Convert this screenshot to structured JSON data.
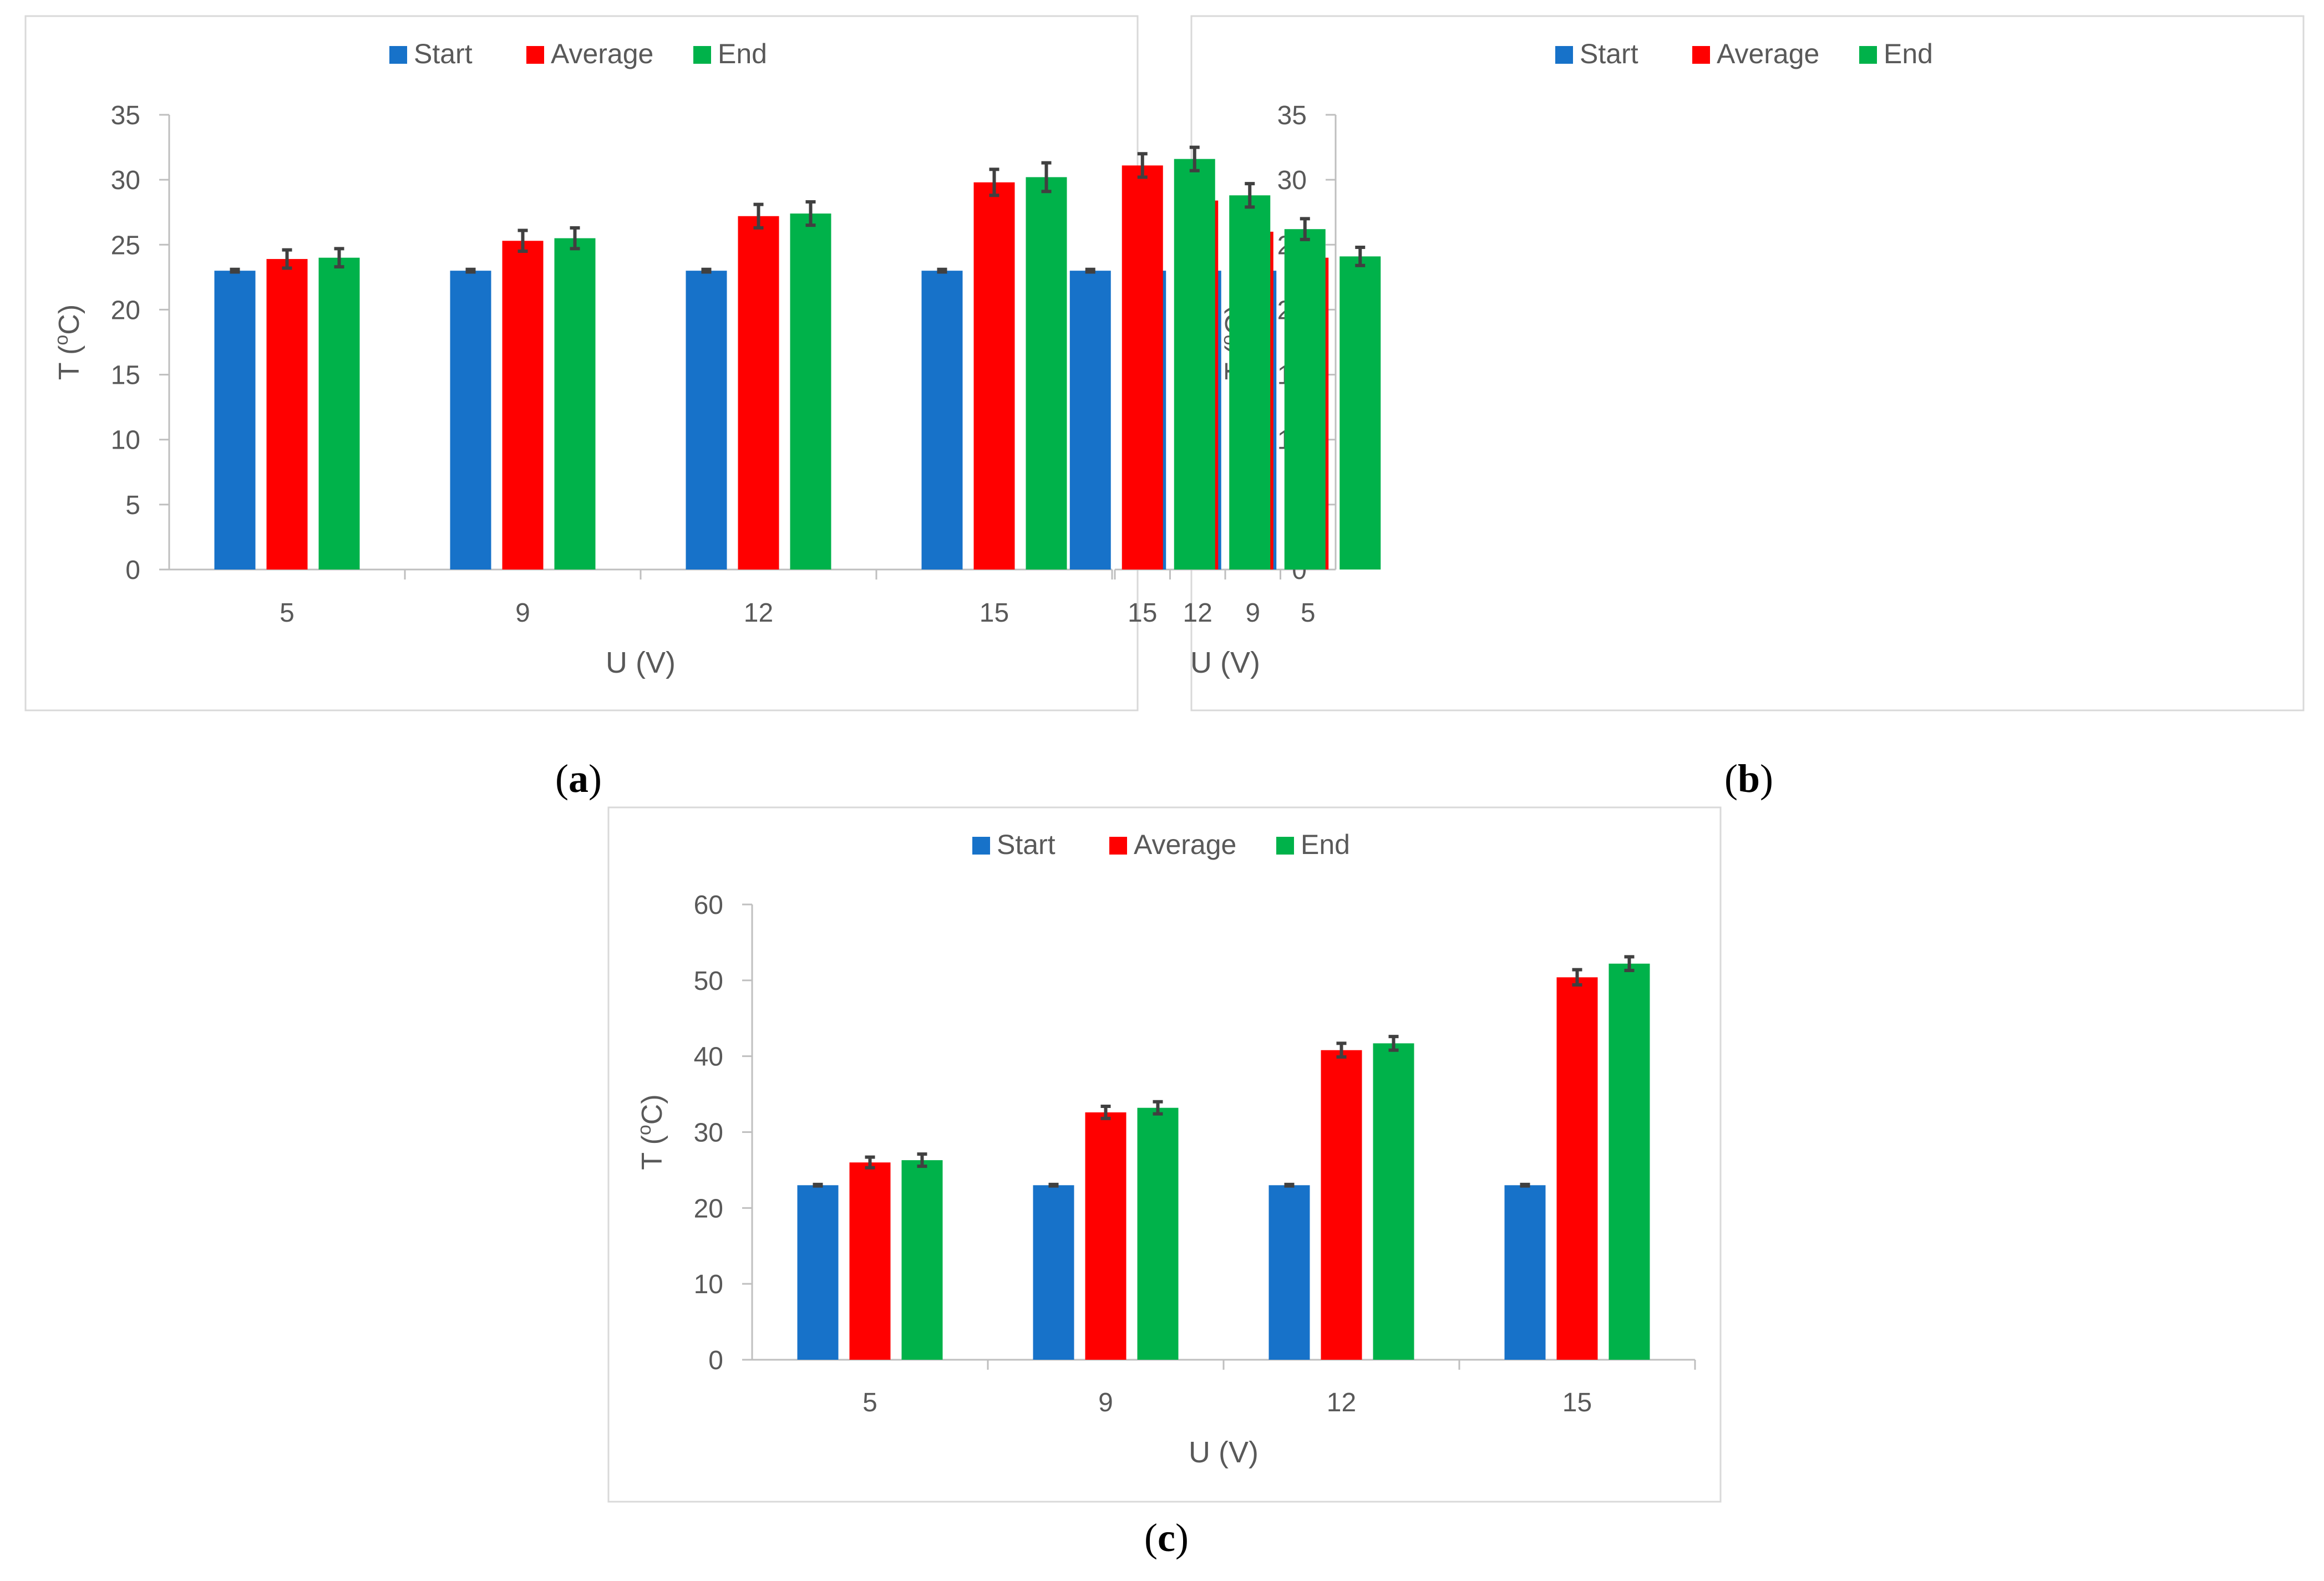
{
  "legend": [
    {
      "name": "Start",
      "color": "#1772C9"
    },
    {
      "name": "Average",
      "color": "#FF0000"
    },
    {
      "name": "End",
      "color": "#00B24A"
    }
  ],
  "error_bar_color": "#404040",
  "panel_labels": [
    "a",
    "b",
    "c"
  ],
  "chart_data": [
    {
      "type": "bar",
      "title": "",
      "xlabel": "U (V)",
      "ylabel_main": "T (",
      "ylabel_sup": "o",
      "ylabel_end": "C)",
      "categories": [
        "5",
        "9",
        "12",
        "15"
      ],
      "ylim": [
        0,
        35
      ],
      "ystep": 5,
      "legend_position": "top-center",
      "grid": false,
      "series": [
        {
          "name": "Start",
          "values": [
            23.0,
            23.0,
            23.0,
            23.0
          ],
          "errors": [
            0.1,
            0.1,
            0.1,
            0.1
          ]
        },
        {
          "name": "Average",
          "values": [
            23.9,
            25.3,
            27.2,
            29.8
          ],
          "errors": [
            0.7,
            0.8,
            0.9,
            1.0
          ]
        },
        {
          "name": "End",
          "values": [
            24.0,
            25.5,
            27.4,
            30.2
          ],
          "errors": [
            0.7,
            0.8,
            0.9,
            1.1
          ]
        }
      ]
    },
    {
      "type": "bar",
      "title": "",
      "xlabel": "U (V)",
      "ylabel_main": "T (",
      "ylabel_sup": "o",
      "ylabel_end": "C)",
      "categories": [
        "5",
        "9",
        "12",
        "15"
      ],
      "ylim": [
        0,
        35
      ],
      "ystep": 5,
      "legend_position": "top-center",
      "grid": false,
      "series": [
        {
          "name": "Start",
          "values": [
            23.0,
            23.0,
            23.0,
            23.0
          ],
          "errors": [
            0.1,
            0.1,
            0.1,
            0.1
          ]
        },
        {
          "name": "Average",
          "values": [
            24.0,
            26.0,
            28.4,
            31.1
          ],
          "errors": [
            0.6,
            0.7,
            0.8,
            0.9
          ]
        },
        {
          "name": "End",
          "values": [
            24.1,
            26.2,
            28.8,
            31.6
          ],
          "errors": [
            0.7,
            0.8,
            0.9,
            0.9
          ]
        }
      ]
    },
    {
      "type": "bar",
      "title": "",
      "xlabel": "U (V)",
      "ylabel_main": "T (",
      "ylabel_sup": "o",
      "ylabel_end": "C)",
      "categories": [
        "5",
        "9",
        "12",
        "15"
      ],
      "ylim": [
        0,
        60
      ],
      "ystep": 10,
      "legend_position": "top-center",
      "grid": false,
      "series": [
        {
          "name": "Start",
          "values": [
            23.0,
            23.0,
            23.0,
            23.0
          ],
          "errors": [
            0.1,
            0.1,
            0.1,
            0.1
          ]
        },
        {
          "name": "Average",
          "values": [
            26.0,
            32.6,
            40.8,
            50.4
          ],
          "errors": [
            0.7,
            0.8,
            0.9,
            1.0
          ]
        },
        {
          "name": "End",
          "values": [
            26.3,
            33.2,
            41.7,
            52.2
          ],
          "errors": [
            0.8,
            0.8,
            0.9,
            0.9
          ]
        }
      ]
    }
  ]
}
